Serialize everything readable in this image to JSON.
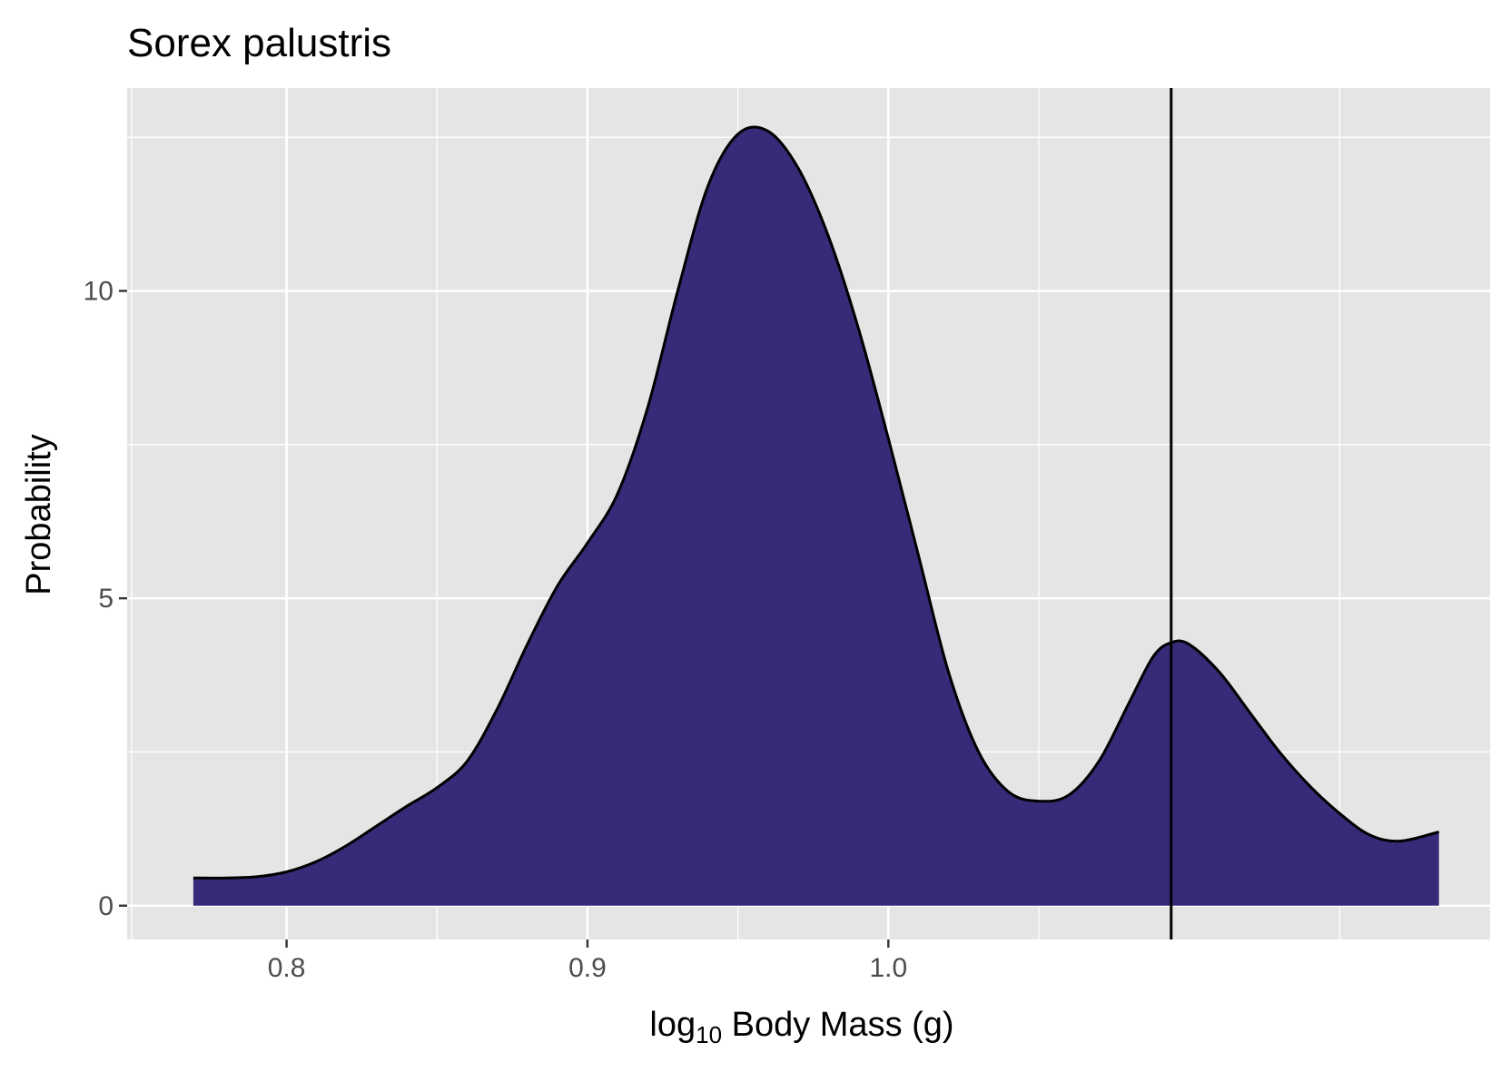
{
  "chart_data": {
    "type": "area",
    "title": "Sorex palustris",
    "xlabel": {
      "base": "log",
      "subscript": "10",
      "rest": " Body Mass (g)"
    },
    "ylabel": "Probability",
    "xlim": [
      0.747,
      1.2
    ],
    "ylim": [
      -0.55,
      13.3
    ],
    "x_ticks": [
      {
        "value": 0.8,
        "label": "0.8"
      },
      {
        "value": 0.9,
        "label": "0.9"
      },
      {
        "value": 1.0,
        "label": "1.0"
      }
    ],
    "x_minor_ticks": [
      0.85,
      0.95,
      1.05,
      1.15
    ],
    "y_ticks": [
      {
        "value": 0,
        "label": "0"
      },
      {
        "value": 5,
        "label": "5"
      },
      {
        "value": 10,
        "label": "10"
      }
    ],
    "y_minor_ticks": [
      2.5,
      7.5,
      12.5
    ],
    "grid": true,
    "vline_x": 1.094,
    "fill_color": "#382a78",
    "line_color": "#000000",
    "panel_bg": "#e5e5e5",
    "grid_color": "#ffffff",
    "series": [
      {
        "x": [
          0.769,
          0.78,
          0.79,
          0.8,
          0.81,
          0.82,
          0.83,
          0.84,
          0.85,
          0.86,
          0.87,
          0.88,
          0.89,
          0.9,
          0.91,
          0.92,
          0.93,
          0.94,
          0.95,
          0.96,
          0.97,
          0.98,
          0.99,
          1.0,
          1.01,
          1.02,
          1.03,
          1.04,
          1.05,
          1.06,
          1.07,
          1.08,
          1.088,
          1.094,
          1.1,
          1.11,
          1.12,
          1.13,
          1.14,
          1.15,
          1.16,
          1.17,
          1.183
        ],
        "y": [
          0.45,
          0.45,
          0.47,
          0.55,
          0.72,
          0.98,
          1.3,
          1.62,
          1.92,
          2.35,
          3.2,
          4.25,
          5.2,
          5.9,
          6.7,
          8.1,
          10.0,
          11.7,
          12.55,
          12.6,
          12.0,
          10.9,
          9.4,
          7.6,
          5.7,
          3.8,
          2.5,
          1.85,
          1.7,
          1.8,
          2.35,
          3.3,
          4.05,
          4.28,
          4.25,
          3.8,
          3.15,
          2.5,
          1.95,
          1.5,
          1.15,
          1.05,
          1.2
        ]
      }
    ]
  }
}
